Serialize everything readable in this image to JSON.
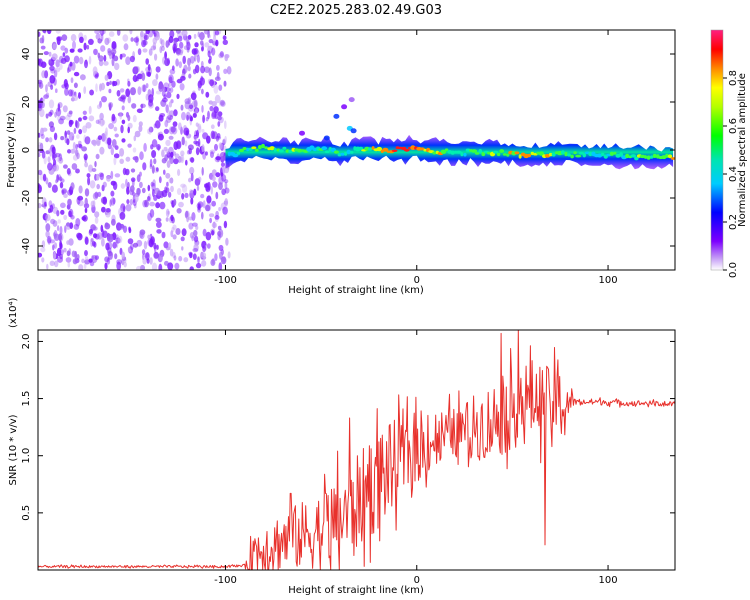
{
  "figure_title": "C2E2.2025.283.02.49.G03",
  "chart_data": [
    {
      "type": "heatmap",
      "name": "spectrogram",
      "xlabel": "Height of straight line (km)",
      "ylabel": "Frequency (Hz)",
      "xlim": [
        -198,
        135
      ],
      "ylim": [
        -50,
        50
      ],
      "xticks": [
        -100,
        0,
        100
      ],
      "xtick_labels": [
        "-100",
        "0",
        "100"
      ],
      "yticks": [
        -40,
        -20,
        0,
        20,
        40
      ],
      "ytick_labels": [
        "-40",
        "-20",
        "0",
        "20",
        "40"
      ],
      "noise_region_x": [
        -198,
        -97
      ],
      "signal_band": [
        {
          "x": -100,
          "y": -3,
          "amp": 0.35
        },
        {
          "x": -90,
          "y": 0,
          "amp": 0.55
        },
        {
          "x": -80,
          "y": 1,
          "amp": 0.7
        },
        {
          "x": -70,
          "y": 0,
          "amp": 0.65
        },
        {
          "x": -60,
          "y": -1,
          "amp": 0.6
        },
        {
          "x": -50,
          "y": 1,
          "amp": 0.55
        },
        {
          "x": -40,
          "y": -2,
          "amp": 0.55
        },
        {
          "x": -30,
          "y": 1,
          "amp": 0.6
        },
        {
          "x": -20,
          "y": 0,
          "amp": 0.8
        },
        {
          "x": -8,
          "y": 0,
          "amp": 0.95
        },
        {
          "x": 0,
          "y": 0,
          "amp": 0.9
        },
        {
          "x": 20,
          "y": -1,
          "amp": 0.6
        },
        {
          "x": 40,
          "y": -1,
          "amp": 0.65
        },
        {
          "x": 60,
          "y": -2,
          "amp": 0.8
        },
        {
          "x": 80,
          "y": -2,
          "amp": 0.6
        },
        {
          "x": 100,
          "y": -2,
          "amp": 0.5
        },
        {
          "x": 120,
          "y": -3,
          "amp": 0.65
        },
        {
          "x": 135,
          "y": -3,
          "amp": 0.75
        }
      ],
      "colorbar": {
        "label": "Normalized spectral amplitude",
        "range": [
          0,
          1
        ],
        "ticks": [
          0.0,
          0.2,
          0.4,
          0.6,
          0.8
        ],
        "tick_labels": [
          "0.0",
          "0.2",
          "0.4",
          "0.6",
          "0.8"
        ]
      }
    },
    {
      "type": "line",
      "name": "snr",
      "xlabel": "Height of straight line (km)",
      "ylabel": "SNR (10 * v/v)",
      "y_multiplier": "(x10⁴)",
      "xlim": [
        -198,
        135
      ],
      "ylim": [
        0,
        2.1
      ],
      "xticks": [
        -100,
        0,
        100
      ],
      "xtick_labels": [
        "-100",
        "0",
        "100"
      ],
      "yticks": [
        0.5,
        1.0,
        1.5,
        2.0
      ],
      "ytick_labels": [
        "0.5",
        "1.0",
        "1.5",
        "2.0"
      ],
      "color": "#e8312c",
      "trend": {
        "x": [
          -198,
          -150,
          -100,
          -90,
          -86,
          -80,
          -70,
          -60,
          -50,
          -40,
          -30,
          -20,
          -10,
          0,
          10,
          20,
          30,
          40,
          50,
          60,
          70,
          75,
          80,
          90,
          100,
          110,
          120,
          135
        ],
        "y": [
          0.03,
          0.03,
          0.03,
          0.04,
          0.15,
          0.2,
          0.25,
          0.3,
          0.35,
          0.45,
          0.6,
          0.8,
          0.95,
          1.05,
          1.15,
          1.2,
          1.25,
          1.3,
          1.4,
          1.5,
          1.45,
          1.45,
          1.47,
          1.47,
          1.47,
          1.46,
          1.46,
          1.45
        ]
      },
      "noise_amplitude": {
        "x": [
          -198,
          -90,
          -86,
          -60,
          -40,
          -20,
          0,
          20,
          40,
          60,
          78,
          82,
          135
        ],
        "y": [
          0.01,
          0.01,
          0.22,
          0.3,
          0.4,
          0.45,
          0.3,
          0.22,
          0.35,
          0.35,
          0.3,
          0.03,
          0.02
        ]
      },
      "notable_peaks": [
        {
          "x": -66,
          "y": 0.67
        },
        {
          "x": -35,
          "y": 1.33
        },
        {
          "x": -18,
          "y": 1.18
        },
        {
          "x": 44,
          "y": 2.07
        },
        {
          "x": 53,
          "y": 2.1
        }
      ],
      "notable_dip": {
        "x": 67,
        "y": 0.22
      }
    }
  ]
}
